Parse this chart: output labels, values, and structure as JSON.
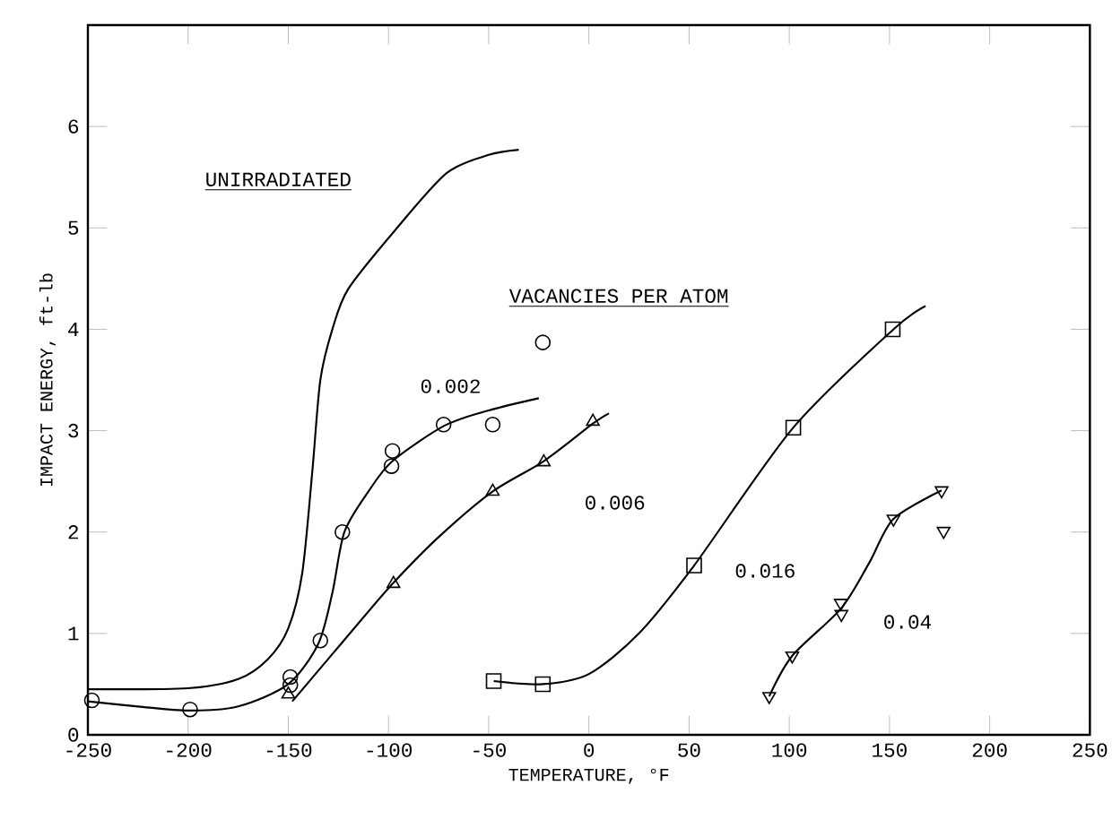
{
  "chart_data": {
    "type": "line",
    "xlabel": "TEMPERATURE, °F",
    "ylabel": "IMPACT ENERGY, ft-lb",
    "xlim": [
      -250,
      250
    ],
    "ylim": [
      0,
      7
    ],
    "xticks": [
      -250,
      -200,
      -150,
      -100,
      -50,
      0,
      50,
      100,
      150,
      200,
      250
    ],
    "yticks": [
      0,
      1,
      2,
      3,
      4,
      5,
      6
    ],
    "annotations": [
      "UNIRRADIATED",
      "VACANCIES PER ATOM",
      "0.002",
      "0.006",
      "0.016",
      "0.04"
    ],
    "series": [
      {
        "marker": "none",
        "color": "#000000",
        "x": [
          -250,
          -200,
          -175,
          -160,
          -150,
          -143,
          -138,
          -134,
          -128,
          -120,
          -97,
          -71,
          -50,
          -35
        ],
        "values": [
          0.45,
          0.46,
          0.55,
          0.75,
          1.05,
          1.6,
          2.6,
          3.5,
          4.0,
          4.4,
          4.97,
          5.54,
          5.72,
          5.77
        ]
      },
      {
        "marker": "none",
        "color": "#000000",
        "x": [
          -250,
          -225,
          -200,
          -175,
          -150,
          -135,
          -128,
          -122,
          -110,
          -98,
          -72,
          -50,
          -25
        ],
        "values": [
          0.33,
          0.28,
          0.24,
          0.28,
          0.5,
          0.9,
          1.4,
          2.0,
          2.4,
          2.7,
          3.05,
          3.2,
          3.32
        ]
      },
      {
        "type": "scatter",
        "marker": "circle",
        "color": "#000000",
        "x": [
          -248,
          -199,
          -149,
          -149,
          -134,
          -123,
          -98.5,
          -98,
          -72.5,
          -48,
          -23
        ],
        "values": [
          0.34,
          0.25,
          0.57,
          0.49,
          0.93,
          2.0,
          2.65,
          2.8,
          3.06,
          3.06,
          3.87
        ]
      },
      {
        "marker": "none",
        "color": "#000000",
        "x": [
          -148,
          -130,
          -115,
          -97.5,
          -75,
          -48,
          -22.5,
          2,
          10
        ],
        "values": [
          0.33,
          0.75,
          1.1,
          1.5,
          1.95,
          2.4,
          2.7,
          3.07,
          3.17
        ]
      },
      {
        "type": "scatter",
        "marker": "triangle",
        "color": "#000000",
        "x": [
          -150,
          -97.5,
          -48,
          -22.5,
          2
        ],
        "values": [
          0.4,
          1.49,
          2.4,
          2.69,
          3.09
        ]
      },
      {
        "marker": "none",
        "color": "#000000",
        "x": [
          -47.5,
          -23,
          0,
          25,
          52.5,
          102,
          152,
          168
        ],
        "values": [
          0.53,
          0.5,
          0.6,
          1.0,
          1.67,
          3.03,
          4.0,
          4.23
        ]
      },
      {
        "type": "scatter",
        "marker": "square",
        "color": "#000000",
        "x": [
          -47.5,
          -23,
          52.5,
          102,
          151.6
        ],
        "values": [
          0.53,
          0.5,
          1.67,
          3.03,
          4.0
        ]
      },
      {
        "marker": "none",
        "color": "#000000",
        "x": [
          90,
          101.5,
          126,
          140,
          152,
          176
        ],
        "values": [
          0.38,
          0.78,
          1.25,
          1.7,
          2.13,
          2.41
        ]
      },
      {
        "type": "scatter",
        "marker": "triangle down",
        "color": "#000000",
        "x": [
          90,
          101.5,
          125.7,
          126,
          152,
          176,
          177
        ],
        "values": [
          0.38,
          0.78,
          1.3,
          1.19,
          2.13,
          2.41,
          2.01
        ]
      }
    ]
  }
}
